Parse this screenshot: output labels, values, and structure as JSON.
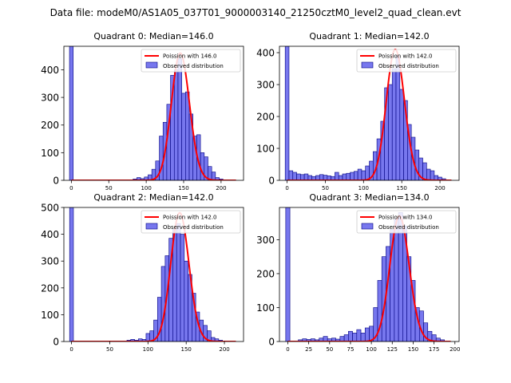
{
  "suptitle": "Data file: modeM0/AS1A05_037T01_9000003140_21250cztM0_level2_quad_clean.evt",
  "chart_data": [
    {
      "type": "bar",
      "title": "Quadrant 0: Median=146.0",
      "legend": {
        "placement": "top-right",
        "line_label": "Poission with 146.0",
        "bar_label": "Observed distribution"
      },
      "xlim": [
        -10,
        230
      ],
      "ylim": [
        0,
        485
      ],
      "xticks": [
        0,
        50,
        100,
        150,
        200
      ],
      "yticks": [
        0,
        100,
        200,
        300,
        400
      ],
      "lambda": 146,
      "peak": 460,
      "bin_width": 5,
      "bins": [
        {
          "x": 0,
          "y": 485
        },
        {
          "x": 85,
          "y": 5
        },
        {
          "x": 90,
          "y": 10
        },
        {
          "x": 95,
          "y": 6
        },
        {
          "x": 100,
          "y": 12
        },
        {
          "x": 105,
          "y": 20
        },
        {
          "x": 110,
          "y": 40
        },
        {
          "x": 115,
          "y": 70
        },
        {
          "x": 120,
          "y": 160
        },
        {
          "x": 125,
          "y": 210
        },
        {
          "x": 130,
          "y": 275
        },
        {
          "x": 135,
          "y": 380
        },
        {
          "x": 140,
          "y": 400
        },
        {
          "x": 145,
          "y": 440
        },
        {
          "x": 150,
          "y": 315
        },
        {
          "x": 155,
          "y": 320
        },
        {
          "x": 160,
          "y": 240
        },
        {
          "x": 165,
          "y": 160
        },
        {
          "x": 170,
          "y": 165
        },
        {
          "x": 175,
          "y": 100
        },
        {
          "x": 180,
          "y": 85
        },
        {
          "x": 185,
          "y": 50
        },
        {
          "x": 190,
          "y": 30
        },
        {
          "x": 195,
          "y": 10
        },
        {
          "x": 200,
          "y": 5
        }
      ]
    },
    {
      "type": "bar",
      "title": "Quadrant 1: Median=142.0",
      "legend": {
        "placement": "top-right",
        "line_label": "Poission with 142.0",
        "bar_label": "Observed distribution"
      },
      "xlim": [
        -10,
        225
      ],
      "ylim": [
        0,
        420
      ],
      "xticks": [
        0,
        50,
        100,
        150,
        200
      ],
      "yticks": [
        0,
        100,
        200,
        300,
        400
      ],
      "lambda": 142,
      "peak": 410,
      "bin_width": 5,
      "bins": [
        {
          "x": 0,
          "y": 420
        },
        {
          "x": 5,
          "y": 30
        },
        {
          "x": 10,
          "y": 25
        },
        {
          "x": 15,
          "y": 20
        },
        {
          "x": 20,
          "y": 18
        },
        {
          "x": 25,
          "y": 20
        },
        {
          "x": 30,
          "y": 15
        },
        {
          "x": 35,
          "y": 12
        },
        {
          "x": 40,
          "y": 15
        },
        {
          "x": 45,
          "y": 18
        },
        {
          "x": 50,
          "y": 16
        },
        {
          "x": 55,
          "y": 14
        },
        {
          "x": 60,
          "y": 12
        },
        {
          "x": 65,
          "y": 25
        },
        {
          "x": 70,
          "y": 15
        },
        {
          "x": 75,
          "y": 20
        },
        {
          "x": 80,
          "y": 22
        },
        {
          "x": 85,
          "y": 25
        },
        {
          "x": 90,
          "y": 28
        },
        {
          "x": 95,
          "y": 35
        },
        {
          "x": 100,
          "y": 30
        },
        {
          "x": 105,
          "y": 45
        },
        {
          "x": 110,
          "y": 60
        },
        {
          "x": 115,
          "y": 90
        },
        {
          "x": 120,
          "y": 130
        },
        {
          "x": 125,
          "y": 185
        },
        {
          "x": 130,
          "y": 290
        },
        {
          "x": 135,
          "y": 300
        },
        {
          "x": 140,
          "y": 350
        },
        {
          "x": 145,
          "y": 390
        },
        {
          "x": 150,
          "y": 285
        },
        {
          "x": 155,
          "y": 250
        },
        {
          "x": 160,
          "y": 175
        },
        {
          "x": 165,
          "y": 135
        },
        {
          "x": 170,
          "y": 95
        },
        {
          "x": 175,
          "y": 70
        },
        {
          "x": 180,
          "y": 55
        },
        {
          "x": 185,
          "y": 35
        },
        {
          "x": 190,
          "y": 30
        },
        {
          "x": 195,
          "y": 15
        },
        {
          "x": 200,
          "y": 10
        },
        {
          "x": 205,
          "y": 5
        }
      ]
    },
    {
      "type": "bar",
      "title": "Quadrant 2: Median=142.0",
      "legend": {
        "placement": "top-right",
        "line_label": "Poission with 142.0",
        "bar_label": "Observed distribution"
      },
      "xlim": [
        -10,
        225
      ],
      "ylim": [
        0,
        500
      ],
      "xticks": [
        0,
        50,
        100,
        150,
        200
      ],
      "yticks": [
        0,
        100,
        200,
        300,
        400,
        500
      ],
      "lambda": 142,
      "peak": 480,
      "bin_width": 5,
      "bins": [
        {
          "x": 0,
          "y": 500
        },
        {
          "x": 75,
          "y": 5
        },
        {
          "x": 80,
          "y": 8
        },
        {
          "x": 85,
          "y": 5
        },
        {
          "x": 90,
          "y": 10
        },
        {
          "x": 95,
          "y": 8
        },
        {
          "x": 100,
          "y": 30
        },
        {
          "x": 105,
          "y": 40
        },
        {
          "x": 110,
          "y": 80
        },
        {
          "x": 115,
          "y": 165
        },
        {
          "x": 120,
          "y": 280
        },
        {
          "x": 125,
          "y": 320
        },
        {
          "x": 130,
          "y": 385
        },
        {
          "x": 135,
          "y": 420
        },
        {
          "x": 140,
          "y": 440
        },
        {
          "x": 145,
          "y": 400
        },
        {
          "x": 150,
          "y": 300
        },
        {
          "x": 155,
          "y": 250
        },
        {
          "x": 160,
          "y": 180
        },
        {
          "x": 165,
          "y": 110
        },
        {
          "x": 170,
          "y": 80
        },
        {
          "x": 175,
          "y": 60
        },
        {
          "x": 180,
          "y": 40
        },
        {
          "x": 185,
          "y": 15
        },
        {
          "x": 190,
          "y": 10
        },
        {
          "x": 195,
          "y": 5
        }
      ]
    },
    {
      "type": "bar",
      "title": "Quadrant 3: Median=134.0",
      "legend": {
        "placement": "top-right",
        "line_label": "Poission with 134.0",
        "bar_label": "Observed distribution"
      },
      "xlim": [
        -10,
        205
      ],
      "ylim": [
        0,
        395
      ],
      "xticks": [
        0,
        25,
        50,
        75,
        100,
        125,
        150,
        175,
        200
      ],
      "yticks": [
        0,
        100,
        200,
        300
      ],
      "lambda": 134,
      "peak": 370,
      "bin_width": 5,
      "bins": [
        {
          "x": 0,
          "y": 395
        },
        {
          "x": 15,
          "y": 5
        },
        {
          "x": 20,
          "y": 8
        },
        {
          "x": 25,
          "y": 6
        },
        {
          "x": 30,
          "y": 8
        },
        {
          "x": 35,
          "y": 5
        },
        {
          "x": 40,
          "y": 10
        },
        {
          "x": 45,
          "y": 15
        },
        {
          "x": 50,
          "y": 8
        },
        {
          "x": 55,
          "y": 10
        },
        {
          "x": 60,
          "y": 7
        },
        {
          "x": 65,
          "y": 15
        },
        {
          "x": 70,
          "y": 20
        },
        {
          "x": 75,
          "y": 30
        },
        {
          "x": 80,
          "y": 25
        },
        {
          "x": 85,
          "y": 35
        },
        {
          "x": 90,
          "y": 25
        },
        {
          "x": 95,
          "y": 40
        },
        {
          "x": 100,
          "y": 45
        },
        {
          "x": 105,
          "y": 100
        },
        {
          "x": 110,
          "y": 180
        },
        {
          "x": 115,
          "y": 250
        },
        {
          "x": 120,
          "y": 280
        },
        {
          "x": 125,
          "y": 330
        },
        {
          "x": 130,
          "y": 360
        },
        {
          "x": 135,
          "y": 380
        },
        {
          "x": 140,
          "y": 340
        },
        {
          "x": 145,
          "y": 250
        },
        {
          "x": 150,
          "y": 180
        },
        {
          "x": 155,
          "y": 100
        },
        {
          "x": 160,
          "y": 90
        },
        {
          "x": 165,
          "y": 55
        },
        {
          "x": 170,
          "y": 30
        },
        {
          "x": 175,
          "y": 20
        },
        {
          "x": 180,
          "y": 10
        },
        {
          "x": 185,
          "y": 5
        }
      ]
    }
  ],
  "style": {
    "bar_fill": "#7777ee",
    "bar_edge": "#000080",
    "curve": "#ff0000"
  }
}
